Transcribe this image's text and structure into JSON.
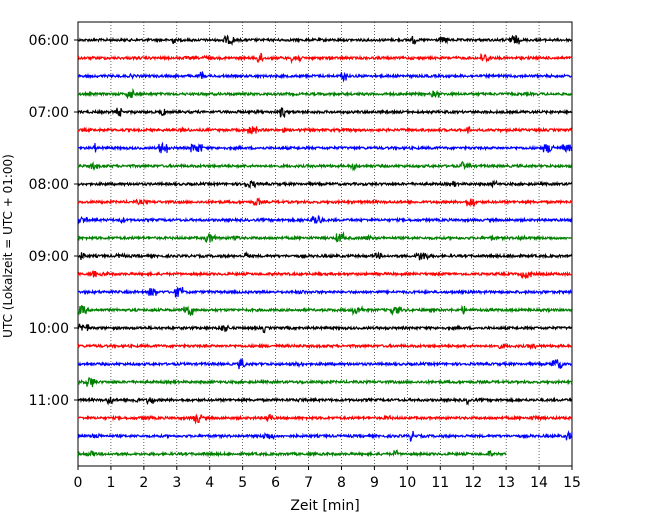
{
  "chart_data": {
    "type": "line",
    "title": "",
    "xlabel": "Zeit  [min]",
    "ylabel": "UTC (Lokalzeit = UTC + 01:00)",
    "xlim": [
      0,
      15
    ],
    "x_ticks": [
      0,
      1,
      2,
      3,
      4,
      5,
      6,
      7,
      8,
      9,
      10,
      11,
      12,
      13,
      14,
      15
    ],
    "y_tick_labels": [
      "06:00",
      "07:00",
      "08:00",
      "09:00",
      "10:00",
      "11:00"
    ],
    "grid": "vertical dotted lines at each minute",
    "line_colors": [
      "#000000",
      "#ff0000",
      "#0000ff",
      "#008000"
    ],
    "trace_interval_min": 15,
    "traces": [
      {
        "start": "06:00",
        "end_min": 15
      },
      {
        "start": "06:15",
        "end_min": 15
      },
      {
        "start": "06:30",
        "end_min": 15
      },
      {
        "start": "06:45",
        "end_min": 15
      },
      {
        "start": "07:00",
        "end_min": 15
      },
      {
        "start": "07:15",
        "end_min": 15
      },
      {
        "start": "07:30",
        "end_min": 15
      },
      {
        "start": "07:45",
        "end_min": 15
      },
      {
        "start": "08:00",
        "end_min": 15
      },
      {
        "start": "08:15",
        "end_min": 15
      },
      {
        "start": "08:30",
        "end_min": 15
      },
      {
        "start": "08:45",
        "end_min": 15
      },
      {
        "start": "09:00",
        "end_min": 15
      },
      {
        "start": "09:15",
        "end_min": 15
      },
      {
        "start": "09:30",
        "end_min": 15
      },
      {
        "start": "09:45",
        "end_min": 15
      },
      {
        "start": "10:00",
        "end_min": 15
      },
      {
        "start": "10:15",
        "end_min": 15
      },
      {
        "start": "10:30",
        "end_min": 15
      },
      {
        "start": "10:45",
        "end_min": 15
      },
      {
        "start": "11:00",
        "end_min": 15
      },
      {
        "start": "11:15",
        "end_min": 15
      },
      {
        "start": "11:30",
        "end_min": 15
      },
      {
        "start": "11:45",
        "end_min": 13.0
      }
    ]
  }
}
